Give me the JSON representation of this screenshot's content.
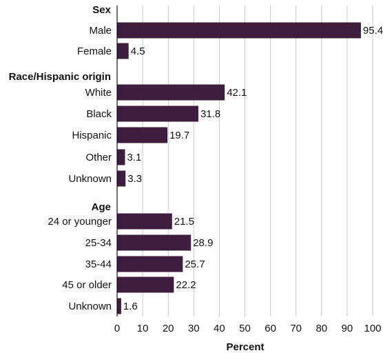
{
  "chart_data": {
    "type": "bar",
    "orientation": "horizontal",
    "xlabel": "Percent",
    "xlim": [
      0,
      100
    ],
    "xticks": [
      "0",
      "10",
      "20",
      "30",
      "40",
      "50",
      "60",
      "70",
      "80",
      "90",
      "100"
    ],
    "grid": "vertical",
    "bar_color": "#3e1e3e",
    "groups": [
      {
        "title": "Sex",
        "categories": [
          "Male",
          "Female"
        ],
        "values": [
          95.4,
          4.5
        ]
      },
      {
        "title": "Race/Hispanic origin",
        "categories": [
          "White",
          "Black",
          "Hispanic",
          "Other",
          "Unknown"
        ],
        "values": [
          42.1,
          31.8,
          19.7,
          3.1,
          3.3
        ]
      },
      {
        "title": "Age",
        "categories": [
          "24 or younger",
          "25-34",
          "35-44",
          "45 or older",
          "Unknown"
        ],
        "values": [
          21.5,
          28.9,
          25.7,
          22.2,
          1.6
        ]
      }
    ]
  }
}
